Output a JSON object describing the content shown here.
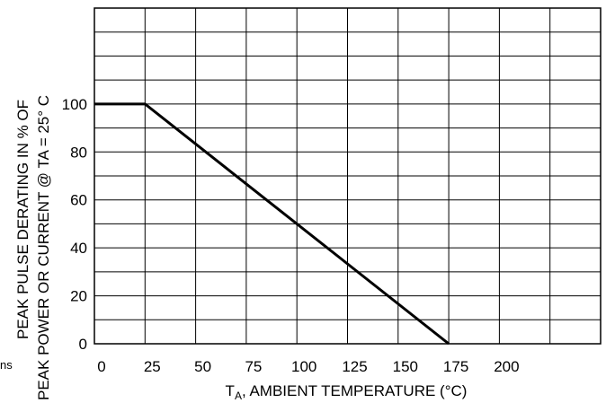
{
  "chart_data": {
    "type": "line",
    "xlabel_main": "T",
    "xlabel_sub": "A",
    "xlabel_rest": ", AMBIENT TEMPERATURE (°C)",
    "ylabel_line1": "PEAK PULSE DERATING IN % OF",
    "ylabel_line2": "PEAK POWER OR CURRENT @ TA = 25° C",
    "left_fragment": "ns",
    "x_ticks": [
      "0",
      "25",
      "50",
      "75",
      "100",
      "125",
      "150",
      "175",
      "200"
    ],
    "y_ticks": [
      "0",
      "20",
      "40",
      "60",
      "80",
      "100"
    ],
    "xlim": [
      0,
      250
    ],
    "ylim": [
      0,
      140
    ],
    "grid": true,
    "series": [
      {
        "x": [
          0,
          25,
          175
        ],
        "y": [
          100,
          100,
          0
        ],
        "color": "#000000"
      }
    ]
  }
}
